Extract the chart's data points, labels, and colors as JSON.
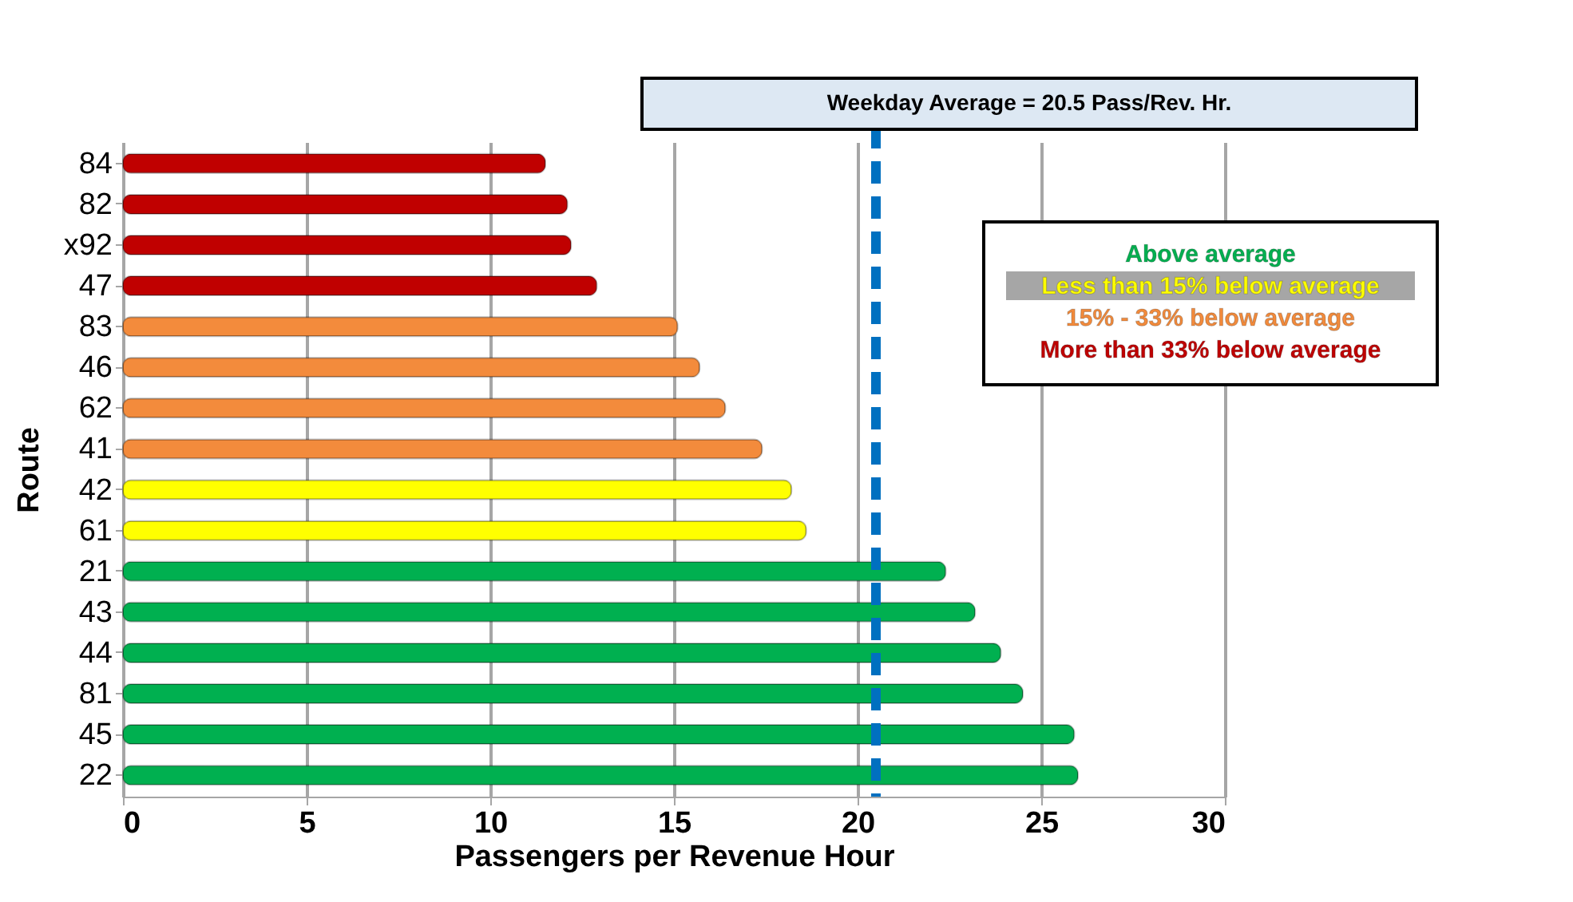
{
  "chart_data": {
    "type": "bar",
    "orientation": "horizontal",
    "xlabel": "Passengers per Revenue Hour",
    "ylabel": "Route",
    "categories": [
      "84",
      "82",
      "x92",
      "47",
      "83",
      "46",
      "62",
      "41",
      "42",
      "61",
      "21",
      "43",
      "44",
      "81",
      "45",
      "22"
    ],
    "series": [
      {
        "name": "Above average",
        "color": "#00b050",
        "values": [
          null,
          null,
          null,
          null,
          null,
          null,
          null,
          null,
          null,
          null,
          22.4,
          23.2,
          23.9,
          24.5,
          25.9,
          26.0
        ]
      },
      {
        "name": "Less than 15% below average",
        "color": "#ffff00",
        "values": [
          null,
          null,
          null,
          null,
          null,
          null,
          null,
          null,
          18.2,
          18.6,
          null,
          null,
          null,
          null,
          null,
          null
        ]
      },
      {
        "name": "15% - 33% below average",
        "color": "#f38b3c",
        "values": [
          null,
          null,
          null,
          null,
          15.1,
          15.7,
          16.4,
          17.4,
          null,
          null,
          null,
          null,
          null,
          null,
          null,
          null
        ]
      },
      {
        "name": "More than 33% below average",
        "color": "#c00000",
        "values": [
          11.5,
          12.1,
          12.2,
          12.9,
          null,
          null,
          null,
          null,
          null,
          null,
          null,
          null,
          null,
          null,
          null,
          null
        ]
      }
    ],
    "xlim": [
      0,
      30
    ],
    "xticks": [
      0,
      5,
      10,
      15,
      20,
      25,
      30
    ],
    "grid": "x",
    "legend": "top right",
    "ref_lines": [
      {
        "axis": "x",
        "value": 20.5,
        "label": "Weekday Average = 20.5 Pass/Rev. Hr.",
        "color": "#0070c0",
        "line_style": "dashed"
      }
    ]
  }
}
